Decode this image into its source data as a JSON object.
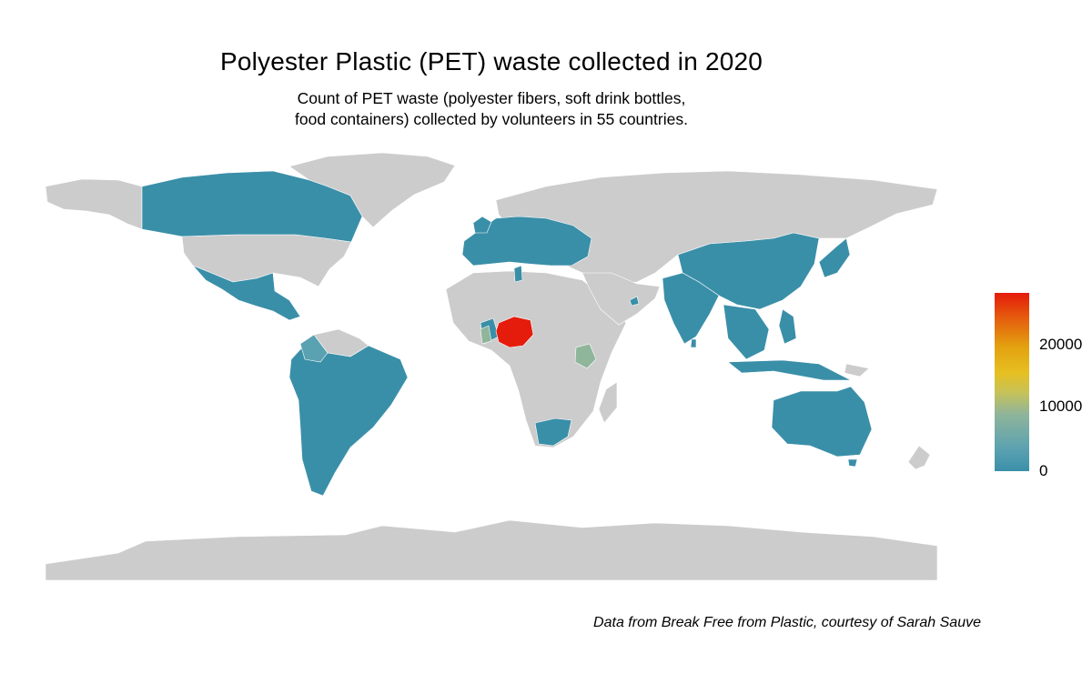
{
  "header": {
    "title": "Polyester Plastic (PET) waste collected in 2020",
    "subtitle_line1": "Count of PET waste (polyester fibers, soft drink bottles,",
    "subtitle_line2": "food containers) collected by volunteers in 55 countries."
  },
  "legend": {
    "labels": [
      "20000",
      "10000",
      "0"
    ],
    "scale_min": 0,
    "scale_max": 27000,
    "colors": [
      "#3a8fa8",
      "#8fb59a",
      "#e6c021",
      "#e51b0c"
    ]
  },
  "caption": "Data from Break Free from Plastic, courtesy of Sarah Sauve",
  "colors": {
    "no_data": "#cccccc",
    "low": "#3a8fa8",
    "mid": "#8fb59a",
    "high": "#e51b0c"
  }
}
